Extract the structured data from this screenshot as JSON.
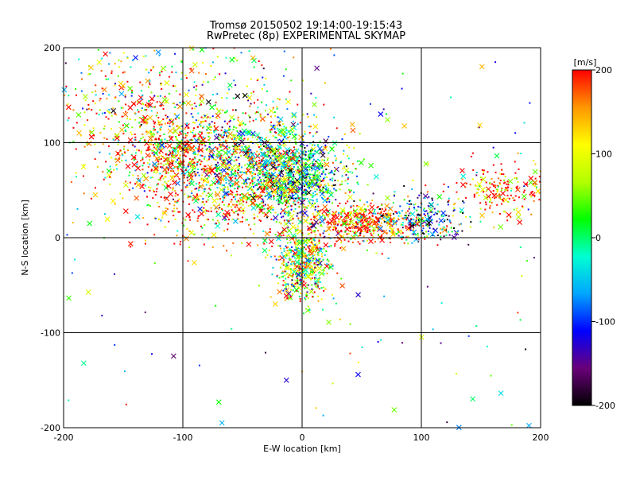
{
  "chart_data": {
    "type": "scatter",
    "title_line1": "Tromsø 20150502 19:14:00-19:15:43",
    "title_line2": "RwPretec (8p) EXPERIMENTAL SKYMAP",
    "xlabel": "E-W location [km]",
    "ylabel": "N-S location [km]",
    "xlim": [
      -200,
      200
    ],
    "ylim": [
      -200,
      200
    ],
    "x_ticks": [
      "-200",
      "-100",
      "0",
      "100",
      "200"
    ],
    "y_ticks": [
      "-200",
      "-100",
      "0",
      "100",
      "200"
    ],
    "grid": true,
    "marker_types": [
      "dot",
      "x"
    ],
    "colorbar": {
      "label": "[m/s]",
      "range": [
        -200,
        200
      ],
      "ticks": [
        "200",
        "100",
        "0",
        "-100",
        "-200"
      ],
      "colormap": [
        "#000000",
        "#6a007a",
        "#0000ff",
        "#00a6ff",
        "#00ffd2",
        "#00ff00",
        "#b4ff00",
        "#ffff00",
        "#ff9600",
        "#ff0000"
      ]
    },
    "clusters": [
      {
        "center": [
          -40,
          85
        ],
        "spread": [
          35,
          25
        ],
        "mean_velocity": 10
      },
      {
        "center": [
          -110,
          90
        ],
        "spread": [
          25,
          20
        ],
        "mean_velocity": 150
      },
      {
        "center": [
          -5,
          60
        ],
        "spread": [
          20,
          18
        ],
        "mean_velocity": -20
      },
      {
        "center": [
          0,
          -25
        ],
        "spread": [
          12,
          22
        ],
        "mean_velocity": 60
      },
      {
        "center": [
          50,
          15
        ],
        "spread": [
          20,
          10
        ],
        "mean_velocity": 190
      },
      {
        "center": [
          100,
          20
        ],
        "spread": [
          20,
          12
        ],
        "mean_velocity": -60
      },
      {
        "center": [
          170,
          50
        ],
        "spread": [
          22,
          14
        ],
        "mean_velocity": 180
      },
      {
        "center": [
          -100,
          150
        ],
        "spread": [
          50,
          35
        ],
        "mean_velocity": 60
      },
      {
        "center": [
          -150,
          120
        ],
        "spread": [
          30,
          40
        ],
        "mean_velocity": 150
      },
      {
        "center": [
          -60,
          40
        ],
        "spread": [
          40,
          25
        ],
        "mean_velocity": 170
      }
    ]
  }
}
